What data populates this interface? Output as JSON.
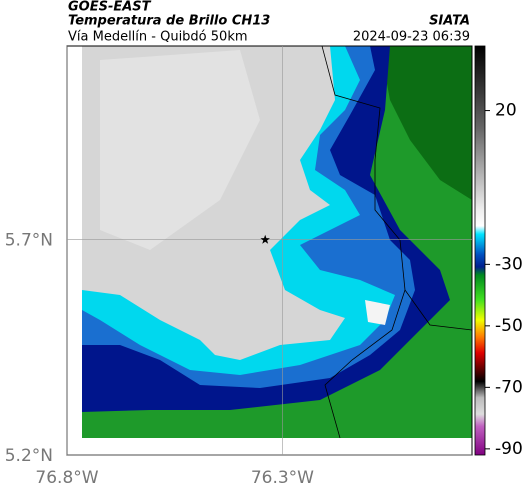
{
  "header": {
    "product": "GOES-EAST",
    "title": "Temperatura de Brillo CH13",
    "subtitle": "Vía Medellín - Quibdó 50km",
    "agency": "SIATA",
    "timestamp": "2024-09-23 06:39"
  },
  "map": {
    "lonlim": [
      -76.8,
      -75.86
    ],
    "latlim": [
      5.2,
      6.15
    ],
    "lon_ticks": [
      {
        "value": -76.8,
        "label": "76.8°W"
      },
      {
        "value": -76.3,
        "label": "76.3°W"
      }
    ],
    "lat_ticks": [
      {
        "value": 5.7,
        "label": "5.7°N"
      },
      {
        "value": 5.2,
        "label": "5.2°N"
      }
    ],
    "station": {
      "lon": -76.34,
      "lat": 5.7
    }
  },
  "colorbar": {
    "limits": [
      -92,
      41
    ],
    "ticks": [
      20,
      -30,
      -50,
      -70,
      -90
    ]
  }
}
